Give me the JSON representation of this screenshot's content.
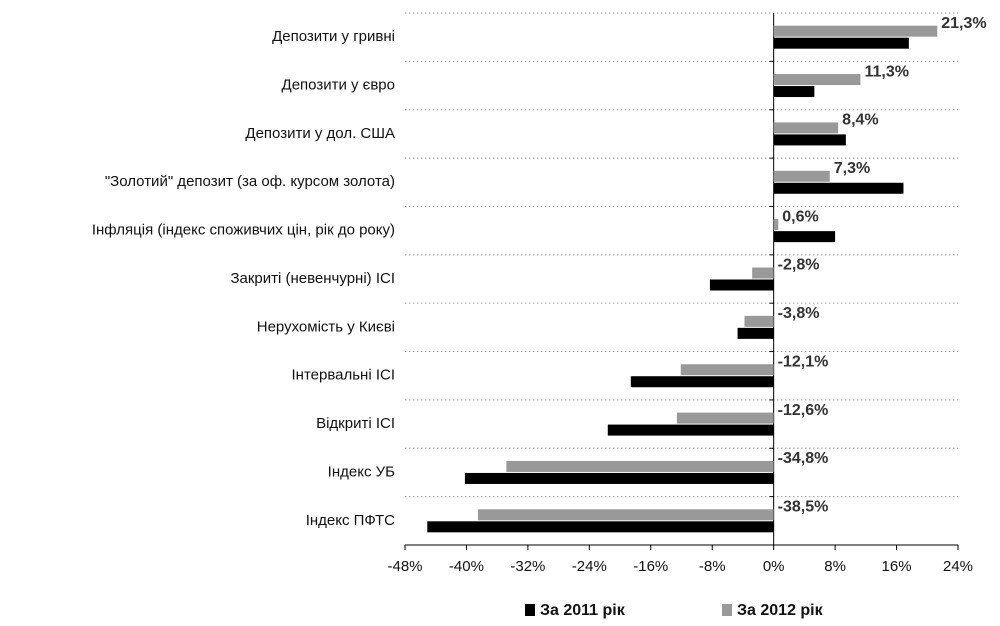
{
  "chart_data": {
    "type": "hbar",
    "categories": [
      "Депозити у гривні",
      "Депозити у євро",
      "Депозити у дол. США",
      "\"Золотий\" депозит (за оф. курсом золота)",
      "Інфляція (індекс споживчих цін, рік до року)",
      "Закриті (невенчурні) ІСІ",
      "Нерухомість у Києві",
      "Інтервальні ІСІ",
      "Відкриті ІСІ",
      "Індекс УБ",
      "Індекс ПФТС"
    ],
    "series": [
      {
        "name": "За 2011 рік",
        "color": "#000000",
        "values": [
          17.6,
          5.3,
          9.4,
          16.9,
          8.0,
          -8.3,
          -4.7,
          -18.6,
          -21.6,
          -40.2,
          -45.1
        ]
      },
      {
        "name": "За 2012 рік",
        "color": "#999999",
        "values": [
          21.3,
          11.3,
          8.4,
          7.3,
          0.6,
          -2.8,
          -3.8,
          -12.1,
          -12.6,
          -34.8,
          -38.5
        ],
        "value_labels": [
          "21,3%",
          "11,3%",
          "8,4%",
          "7,3%",
          "0,6%",
          "-2,8%",
          "-3,8%",
          "-12,1%",
          "-12,6%",
          "-34,8%",
          "-38,5%"
        ]
      }
    ],
    "xlim": [
      -48,
      24
    ],
    "xticks": [
      {
        "value": -48,
        "label": "-48%"
      },
      {
        "value": -40,
        "label": "-40%"
      },
      {
        "value": -32,
        "label": "-32%"
      },
      {
        "value": -24,
        "label": "-24%"
      },
      {
        "value": -16,
        "label": "-16%"
      },
      {
        "value": -8,
        "label": "-8%"
      },
      {
        "value": 0,
        "label": "0%"
      },
      {
        "value": 8,
        "label": "8%"
      },
      {
        "value": 16,
        "label": "16%"
      },
      {
        "value": 24,
        "label": "24%"
      }
    ],
    "grid": true,
    "legend": "bottom"
  }
}
